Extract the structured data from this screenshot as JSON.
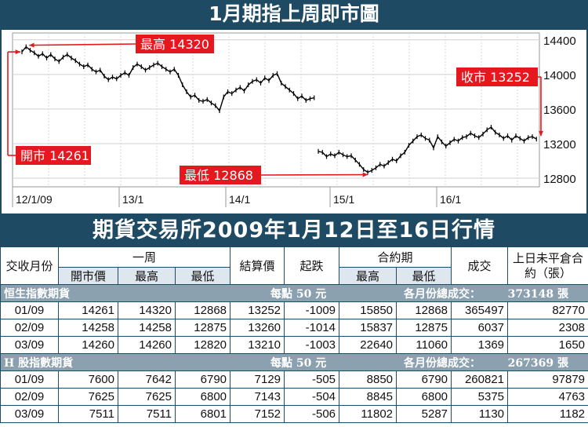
{
  "chart_title": "1月期指上周即市圖",
  "table_title": "期貨交易所2009年1月12日至16日行情",
  "chart_data": {
    "type": "line",
    "title": "1月期指上周即市圖",
    "x_ticks": [
      "12/1/09",
      "13/1",
      "14/1",
      "15/1",
      "16/1"
    ],
    "y_ticks": [
      14400,
      14000,
      13600,
      13200,
      12800
    ],
    "ylim": [
      12700,
      14480
    ],
    "grid": true,
    "series": [
      {
        "values": [
          14261,
          14320,
          14280,
          14250,
          14210,
          14240,
          14190,
          14230,
          14180,
          14150,
          14200,
          14230,
          14190,
          14160,
          14120,
          14090,
          14110,
          14060,
          14030,
          14050,
          13980,
          13940,
          13970,
          13950,
          13990,
          14020,
          13990,
          14080,
          14120,
          14090,
          14050,
          14080,
          14110,
          14130,
          14090,
          14060,
          14030,
          14060,
          13990,
          13880,
          13800,
          13740,
          13760,
          13700,
          13690,
          13710,
          13670,
          13640,
          13580,
          13740,
          13800,
          13780,
          13820,
          13850,
          13810,
          13880,
          13920,
          13940,
          13900,
          13960,
          13930,
          13990,
          14010,
          13900,
          13860,
          13820,
          13780,
          13720,
          13750,
          13700,
          13720,
          13730,
          13110,
          13100,
          13050,
          13080,
          13060,
          13100,
          13070,
          13050,
          13060,
          13010,
          12960,
          12900,
          12868,
          12890,
          12920,
          12960,
          12940,
          12980,
          13020,
          13000,
          13060,
          13100,
          13180,
          13230,
          13280,
          13300,
          13260,
          13240,
          13150,
          13280,
          13220,
          13170,
          13210,
          13250,
          13230,
          13270,
          13280,
          13320,
          13290,
          13270,
          13310,
          13360,
          13390,
          13330,
          13300,
          13260,
          13290,
          13240,
          13290,
          13260,
          13230,
          13270,
          13280,
          13252
        ],
        "breaks": [
          72
        ]
      }
    ],
    "annotations": {
      "high": "最高 14320",
      "close": "收市 13252",
      "open": "開市 14261",
      "low": "最低 12868"
    },
    "colors": {
      "line": "#000000",
      "annotation": "#e4181e",
      "banner": "#1e4a63"
    }
  },
  "table": {
    "headers": {
      "month": "交收月份",
      "week": "一周",
      "open": "開市價",
      "high": "最高",
      "low": "最低",
      "settle": "結算價",
      "change": "起跌",
      "contract": "合約期",
      "c_high": "最高",
      "c_low": "最低",
      "volume": "成交",
      "oi": "上日未平倉合約（張）"
    },
    "sections": [
      {
        "name": "恒生指數期貨",
        "unit": "每點 50 元",
        "total_label": "各月份總成交：",
        "total": "373148 張",
        "rows": [
          [
            "01/09",
            "14261",
            "14320",
            "12868",
            "13252",
            "-1009",
            "15850",
            "12868",
            "365497",
            "82770"
          ],
          [
            "02/09",
            "14258",
            "14258",
            "12875",
            "13260",
            "-1014",
            "15837",
            "12875",
            "6037",
            "2308"
          ],
          [
            "03/09",
            "14260",
            "14260",
            "12820",
            "13210",
            "-1003",
            "22640",
            "11060",
            "1369",
            "1650"
          ]
        ]
      },
      {
        "name": "H 股指數期貨",
        "unit": "每點 50 元",
        "total_label": "各月份總成交：",
        "total": "267369 張",
        "rows": [
          [
            "01/09",
            "7600",
            "7642",
            "6790",
            "7129",
            "-505",
            "8850",
            "6790",
            "260821",
            "97879"
          ],
          [
            "02/09",
            "7625",
            "7625",
            "6800",
            "7143",
            "-504",
            "8845",
            "6800",
            "5375",
            "4763"
          ],
          [
            "03/09",
            "7511",
            "7511",
            "6801",
            "7152",
            "-506",
            "11802",
            "5287",
            "1130",
            "1182"
          ]
        ]
      }
    ]
  }
}
